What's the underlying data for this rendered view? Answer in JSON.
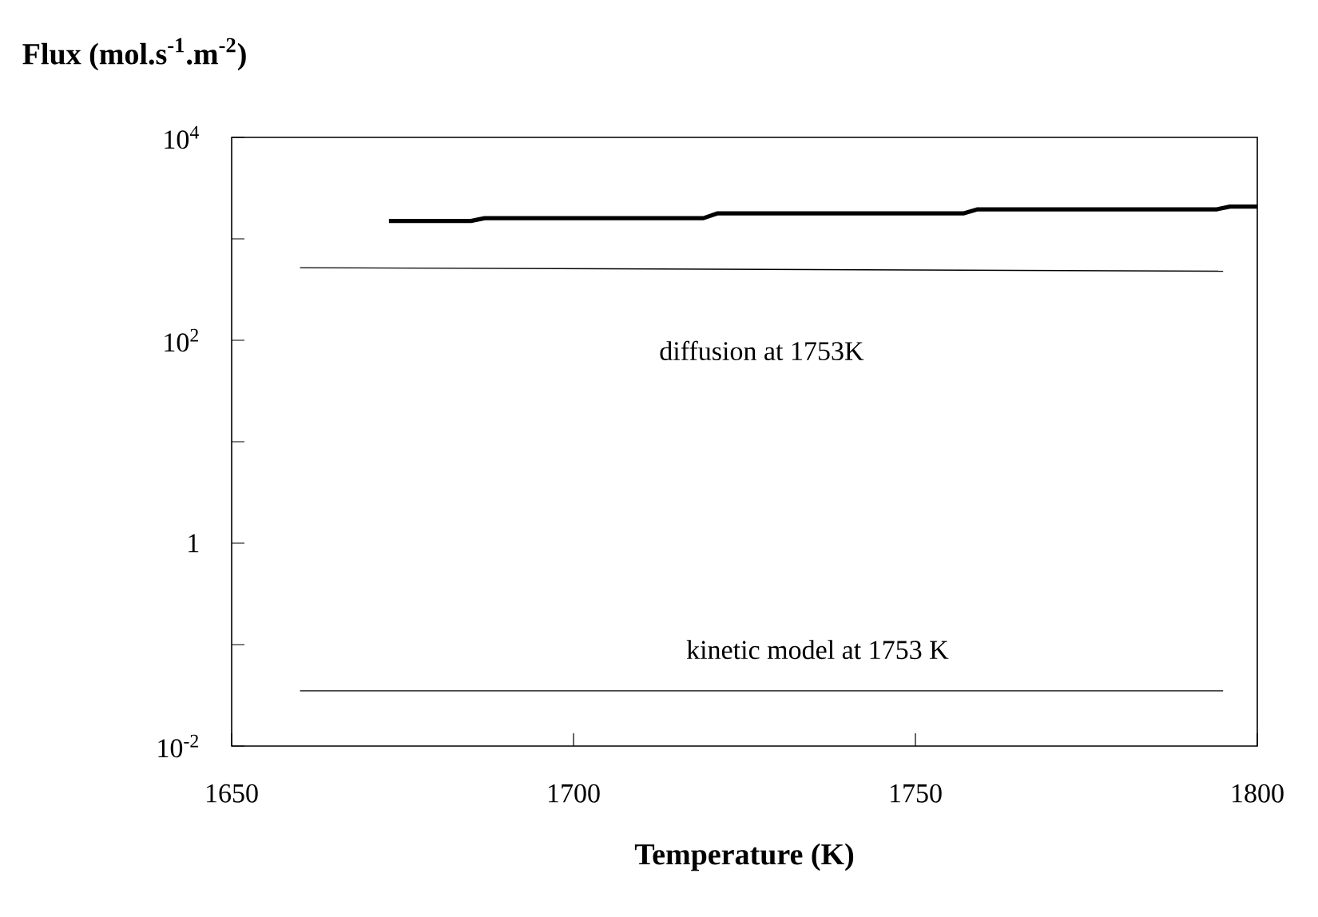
{
  "chart_data": {
    "type": "line",
    "xlabel": "Temperature (K)",
    "ylabel": "Flux (mol.s$^{-1}$.m$^{-2}$)",
    "log": "y",
    "xlim": [
      1650,
      1800
    ],
    "xticks": [
      1650,
      1700,
      1750,
      1800
    ],
    "ylim": [
      0.01,
      10000
    ],
    "yticks": [
      {
        "value": 0.01,
        "label": "10$^{-2}$"
      },
      {
        "value": 0.1,
        "label": null
      },
      1,
      {
        "value": 10,
        "label": null
      },
      {
        "value": 100,
        "label": "10$^{2}$"
      },
      {
        "value": 1000,
        "label": null
      },
      {
        "value": 10000,
        "label": "10$^{4}$"
      }
    ],
    "series": [
      {
        "color": "#000000",
        "x": [
          1673,
          1685,
          1687,
          1719,
          1721,
          1757,
          1759,
          1794,
          1796,
          1800
        ],
        "values": [
          1500,
          1500,
          1600,
          1600,
          1780,
          1780,
          1950,
          1950,
          2080,
          2080
        ]
      },
      {
        "name": "diffusion at 1753K",
        "color": "#000000",
        "x": [
          1660,
          1795
        ],
        "values": [
          520,
          480
        ]
      },
      {
        "name": "kinetic model at 1753 K",
        "color": "#000000",
        "x": [
          1660,
          1795
        ],
        "values": [
          0.035,
          0.035
        ]
      }
    ]
  }
}
